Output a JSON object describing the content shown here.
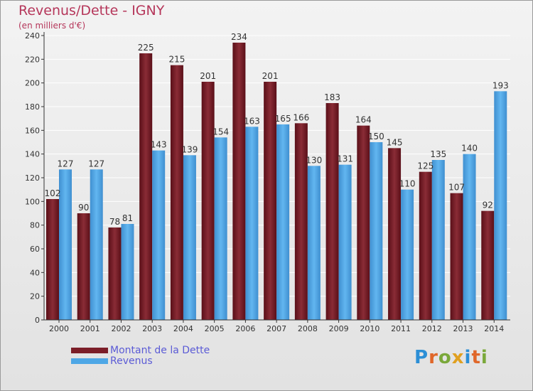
{
  "title": "Revenus/Dette - IGNY",
  "subtitle": "(en milliers d'€)",
  "logo": "Proxiti",
  "colors": {
    "dette": "#7b1e28",
    "revenus": "#4ea7e6",
    "axis": "#333333",
    "grid": "#ffffff"
  },
  "legend": [
    {
      "label": "Montant de la Dette",
      "color": "#7b1e28"
    },
    {
      "label": "Revenus",
      "color": "#4ea7e6"
    }
  ],
  "chart_data": {
    "type": "bar",
    "categories": [
      "2000",
      "2001",
      "2002",
      "2003",
      "2004",
      "2005",
      "2006",
      "2007",
      "2008",
      "2009",
      "2010",
      "2011",
      "2012",
      "2013",
      "2014"
    ],
    "series": [
      {
        "name": "Montant de la Dette",
        "values": [
          102,
          90,
          78,
          225,
          215,
          201,
          234,
          201,
          166,
          183,
          164,
          145,
          125,
          107,
          92
        ]
      },
      {
        "name": "Revenus",
        "values": [
          127,
          127,
          81,
          143,
          139,
          154,
          163,
          165,
          130,
          131,
          150,
          110,
          135,
          140,
          193
        ]
      }
    ],
    "ylim": [
      0,
      240
    ],
    "yticks": [
      0,
      20,
      40,
      60,
      80,
      100,
      120,
      140,
      160,
      180,
      200,
      220,
      240
    ],
    "grid": true,
    "legend_position": "bottom-left"
  }
}
